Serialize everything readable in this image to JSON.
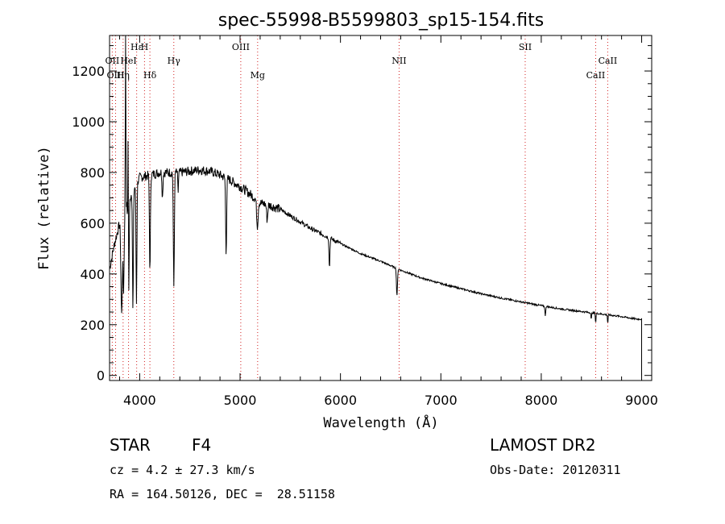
{
  "chart_data": {
    "type": "line",
    "title": "spec-55998-B5599803_sp15-154.fits",
    "xlabel": "Wavelength (Å)",
    "ylabel": "Flux (relative)",
    "xlim": [
      3700,
      9100
    ],
    "ylim": [
      -20,
      1340
    ],
    "x_ticks": [
      4000,
      5000,
      6000,
      7000,
      8000,
      9000
    ],
    "y_ticks": [
      0,
      200,
      400,
      600,
      800,
      1000,
      1200
    ],
    "x_tick_labels": [
      "4000",
      "5000",
      "6000",
      "7000",
      "8000",
      "9000"
    ],
    "y_tick_labels": [
      "0",
      "200",
      "400",
      "600",
      "800",
      "1000",
      "1200"
    ],
    "grid": false,
    "lines": [
      {
        "label": "Hε",
        "wavelength": 3970,
        "row": 1
      },
      {
        "label": "H",
        "wavelength": 3968,
        "row": 1,
        "offset": 1
      },
      {
        "label": "OII",
        "wavelength": 3727,
        "row": 2
      },
      {
        "label": "HeI",
        "wavelength": 3889,
        "row": 2
      },
      {
        "label": "OIII",
        "wavelength": 3760,
        "row": 3
      },
      {
        "label": "Hη",
        "wavelength": 3835,
        "row": 3
      },
      {
        "label": "Hδ",
        "wavelength": 4102,
        "row": 3
      },
      {
        "label": "Hγ",
        "wavelength": 4340,
        "row": 2
      },
      {
        "label": "OIII",
        "wavelength": 5007,
        "row": 1
      },
      {
        "label": "Mg",
        "wavelength": 5175,
        "row": 3
      },
      {
        "label": "NII",
        "wavelength": 6584,
        "row": 2
      },
      {
        "label": "SII",
        "wavelength": 7840,
        "row": 1
      },
      {
        "label": "CaII",
        "wavelength": 8542,
        "row": 3
      },
      {
        "label": "CaII",
        "wavelength": 8662,
        "row": 2
      }
    ],
    "continuum": [
      [
        3700,
        420
      ],
      [
        3750,
        520
      ],
      [
        3800,
        600
      ],
      [
        3850,
        650
      ],
      [
        3900,
        700
      ],
      [
        3950,
        740
      ],
      [
        4000,
        780
      ],
      [
        4100,
        790
      ],
      [
        4200,
        800
      ],
      [
        4300,
        800
      ],
      [
        4400,
        800
      ],
      [
        4500,
        805
      ],
      [
        4600,
        810
      ],
      [
        4700,
        805
      ],
      [
        4800,
        790
      ],
      [
        4900,
        770
      ],
      [
        5000,
        745
      ],
      [
        5100,
        715
      ],
      [
        5200,
        680
      ],
      [
        5300,
        670
      ],
      [
        5400,
        655
      ],
      [
        5500,
        630
      ],
      [
        5600,
        605
      ],
      [
        5700,
        580
      ],
      [
        5800,
        560
      ],
      [
        5900,
        540
      ],
      [
        6000,
        520
      ],
      [
        6200,
        480
      ],
      [
        6400,
        450
      ],
      [
        6600,
        415
      ],
      [
        6800,
        385
      ],
      [
        7000,
        362
      ],
      [
        7200,
        342
      ],
      [
        7400,
        322
      ],
      [
        7600,
        305
      ],
      [
        7800,
        290
      ],
      [
        8000,
        275
      ],
      [
        8200,
        262
      ],
      [
        8400,
        252
      ],
      [
        8600,
        242
      ],
      [
        8800,
        232
      ],
      [
        8950,
        222
      ],
      [
        9000,
        222
      ]
    ],
    "absorption": [
      [
        3820,
        380,
        10
      ],
      [
        3840,
        300,
        8
      ],
      [
        3889,
        450,
        8
      ],
      [
        3933,
        480,
        6
      ],
      [
        3968,
        470,
        6
      ],
      [
        4102,
        380,
        7
      ],
      [
        4227,
        100,
        6
      ],
      [
        4340,
        450,
        7
      ],
      [
        4383,
        80,
        5
      ],
      [
        4861,
        290,
        7
      ],
      [
        5172,
        100,
        10
      ],
      [
        5270,
        60,
        8
      ],
      [
        5890,
        120,
        6
      ],
      [
        6563,
        110,
        7
      ],
      [
        8040,
        40,
        5
      ],
      [
        8498,
        30,
        4
      ],
      [
        8542,
        40,
        4
      ],
      [
        8662,
        35,
        4
      ]
    ],
    "emission_spike": [
      [
        3860,
        1340,
        4
      ],
      [
        3885,
        960,
        4
      ]
    ],
    "end_drop": [
      9000,
      0
    ]
  },
  "info": {
    "class_label": "STAR",
    "subclass": "F4",
    "survey": "LAMOST DR2",
    "cz_line": "cz = 4.2 ± 27.3 km/s",
    "obs_date_line": "Obs-Date: 20120311",
    "coord_line": "RA = 164.50126, DEC =  28.51158"
  },
  "colors": {
    "line": "#000000",
    "marker": "#d22020",
    "background": "#ffffff"
  }
}
